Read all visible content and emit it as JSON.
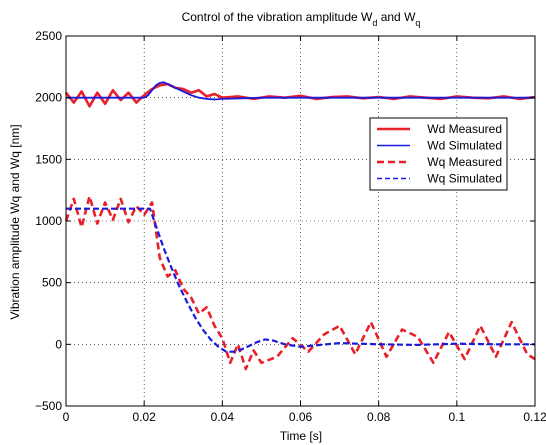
{
  "chart_data": {
    "type": "line",
    "title_main": "Control of the vibration amplitude W",
    "title_sub1": "d",
    "title_mid": " and W",
    "title_sub2": "q",
    "xlabel": "Time [s]",
    "ylabel": "Vibration amplitude  Wq and Wq [nm]",
    "xlim": [
      0,
      0.12
    ],
    "ylim": [
      -500,
      2500
    ],
    "xticks": [
      0,
      0.02,
      0.04,
      0.06,
      0.08,
      0.1,
      0.12
    ],
    "xtick_labels": [
      "0",
      "0.02",
      "0.04",
      "0.06",
      "0.08",
      "0.1",
      "0.12"
    ],
    "yticks": [
      -500,
      0,
      500,
      1000,
      1500,
      2000,
      2500
    ],
    "ytick_labels": [
      "−500",
      "0",
      "500",
      "1000",
      "1500",
      "2000",
      "2500"
    ],
    "grid": true,
    "legend_position": "right",
    "series": [
      {
        "name": "Wd Measured",
        "color": "#e8202a",
        "style": "solid-thick",
        "x": [
          0,
          0.002,
          0.004,
          0.006,
          0.008,
          0.01,
          0.012,
          0.014,
          0.016,
          0.018,
          0.02,
          0.022,
          0.024,
          0.026,
          0.028,
          0.03,
          0.032,
          0.034,
          0.036,
          0.038,
          0.04,
          0.044,
          0.048,
          0.052,
          0.056,
          0.06,
          0.064,
          0.068,
          0.072,
          0.076,
          0.08,
          0.084,
          0.088,
          0.092,
          0.096,
          0.1,
          0.104,
          0.108,
          0.112,
          0.116,
          0.12
        ],
        "y": [
          2040,
          1960,
          2050,
          1930,
          2040,
          1950,
          2060,
          1980,
          2040,
          1960,
          2020,
          2070,
          2100,
          2110,
          2080,
          2070,
          2040,
          2060,
          2010,
          2030,
          2000,
          2010,
          1990,
          2010,
          2000,
          2015,
          1990,
          2005,
          2010,
          1995,
          2005,
          1990,
          2010,
          2000,
          1990,
          2010,
          2000,
          1995,
          2010,
          1990,
          2005
        ]
      },
      {
        "name": "Wd Simulated",
        "color": "#1a1adf",
        "style": "solid",
        "x": [
          0,
          0.02,
          0.021,
          0.022,
          0.023,
          0.024,
          0.025,
          0.026,
          0.028,
          0.03,
          0.032,
          0.034,
          0.036,
          0.038,
          0.04,
          0.045,
          0.05,
          0.06,
          0.12
        ],
        "y": [
          2000,
          2000,
          2020,
          2060,
          2100,
          2120,
          2125,
          2110,
          2080,
          2050,
          2020,
          2000,
          1990,
          1985,
          1990,
          1995,
          2000,
          2000,
          2000
        ]
      },
      {
        "name": "Wq Measured",
        "color": "#e8202a",
        "style": "dashed-thick",
        "x": [
          0,
          0.002,
          0.004,
          0.006,
          0.008,
          0.01,
          0.012,
          0.014,
          0.016,
          0.018,
          0.02,
          0.022,
          0.024,
          0.026,
          0.028,
          0.03,
          0.032,
          0.034,
          0.036,
          0.038,
          0.04,
          0.042,
          0.044,
          0.046,
          0.048,
          0.05,
          0.054,
          0.058,
          0.062,
          0.066,
          0.07,
          0.074,
          0.078,
          0.082,
          0.086,
          0.09,
          0.094,
          0.098,
          0.102,
          0.106,
          0.11,
          0.114,
          0.118,
          0.12
        ],
        "y": [
          1000,
          1180,
          950,
          1200,
          980,
          1150,
          1010,
          1180,
          990,
          1120,
          1050,
          1150,
          700,
          550,
          600,
          450,
          380,
          250,
          300,
          150,
          50,
          -150,
          0,
          -200,
          -50,
          -150,
          -100,
          50,
          -60,
          80,
          150,
          -80,
          180,
          -100,
          120,
          60,
          -150,
          100,
          -120,
          150,
          -100,
          180,
          -80,
          -120
        ]
      },
      {
        "name": "Wq Simulated",
        "color": "#1a1adf",
        "style": "dashed",
        "x": [
          0,
          0.0215,
          0.023,
          0.025,
          0.027,
          0.029,
          0.031,
          0.033,
          0.035,
          0.037,
          0.039,
          0.041,
          0.043,
          0.045,
          0.047,
          0.049,
          0.051,
          0.053,
          0.056,
          0.06,
          0.065,
          0.07,
          0.08,
          0.09,
          0.1,
          0.11,
          0.12
        ],
        "y": [
          1100,
          1100,
          960,
          780,
          620,
          470,
          340,
          220,
          120,
          40,
          -20,
          -60,
          -60,
          -40,
          -10,
          20,
          40,
          30,
          0,
          -20,
          -5,
          10,
          0,
          -5,
          5,
          0,
          0
        ]
      }
    ]
  }
}
